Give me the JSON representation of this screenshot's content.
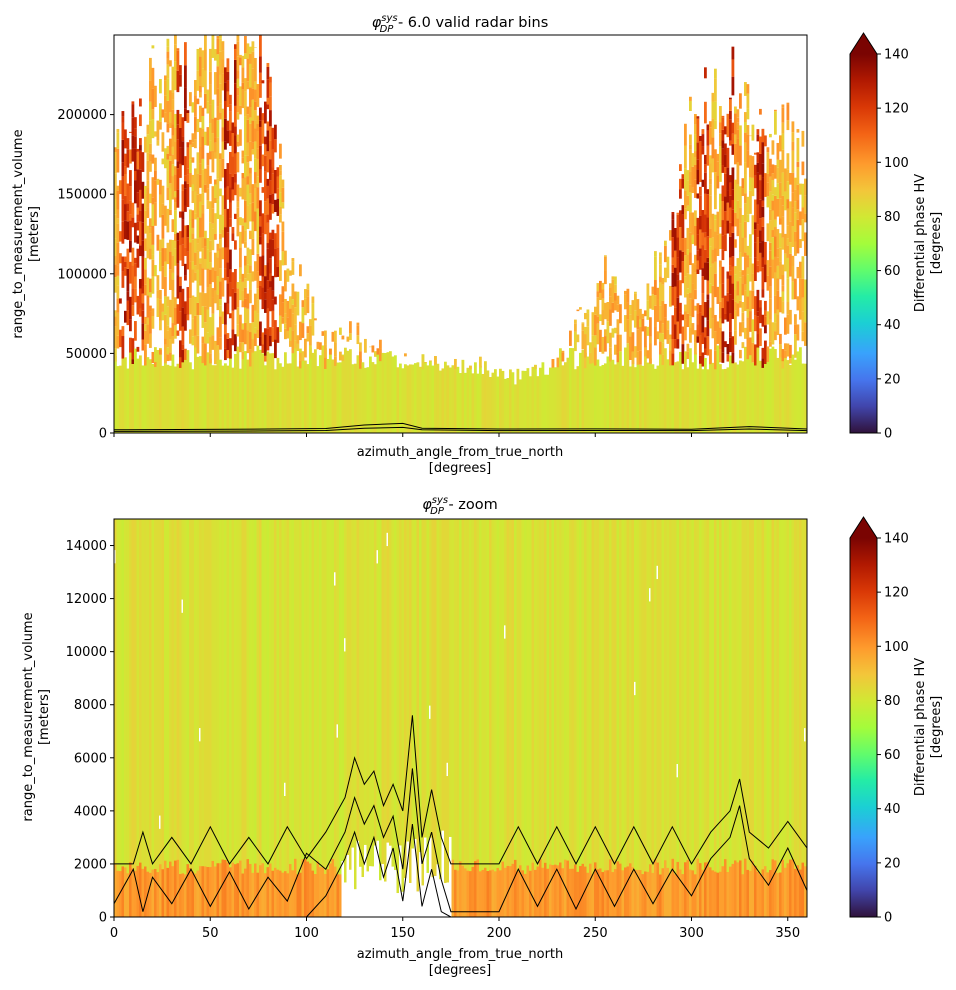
{
  "chart_data": [
    {
      "type": "heatmap",
      "title_symbol": "φ",
      "title_sup": "sys",
      "title_sub": "DP",
      "title_rest": " - 6.0 valid radar bins",
      "xlabel": "azimuth_angle_from_true_north",
      "xunit": "[degrees]",
      "ylabel": "range_to_measurement_volume",
      "yunit": "[meters]",
      "xlim": [
        0,
        360
      ],
      "ylim": [
        0,
        250000
      ],
      "yticks": [
        {
          "value": 0,
          "label": "0"
        },
        {
          "value": 50000,
          "label": "50000"
        },
        {
          "value": 100000,
          "label": "100000"
        },
        {
          "value": 150000,
          "label": "150000"
        },
        {
          "value": 200000,
          "label": "200000"
        }
      ],
      "xticks": [
        {
          "value": 0,
          "label": ""
        },
        {
          "value": 50,
          "label": ""
        },
        {
          "value": 100,
          "label": ""
        },
        {
          "value": 150,
          "label": ""
        },
        {
          "value": 200,
          "label": ""
        },
        {
          "value": 250,
          "label": ""
        },
        {
          "value": 300,
          "label": ""
        },
        {
          "value": 350,
          "label": ""
        }
      ],
      "colorbar": {
        "label": "Differential phase HV",
        "unit": "[degrees]",
        "colormap": "turbo",
        "range": [
          0,
          140
        ],
        "extend": "max",
        "ticks": [
          "0",
          "20",
          "40",
          "60",
          "80",
          "100",
          "120",
          "140"
        ]
      },
      "field_summary": {
        "background_value_deg": 82,
        "echo_top_by_azimuth": [
          [
            0,
            180000
          ],
          [
            20,
            220000
          ],
          [
            40,
            240000
          ],
          [
            60,
            250000
          ],
          [
            80,
            250000
          ],
          [
            90,
            110000
          ],
          [
            110,
            60000
          ],
          [
            130,
            62000
          ],
          [
            150,
            45000
          ],
          [
            170,
            45000
          ],
          [
            190,
            42000
          ],
          [
            210,
            35000
          ],
          [
            225,
            40000
          ],
          [
            240,
            70000
          ],
          [
            255,
            100000
          ],
          [
            270,
            80000
          ],
          [
            285,
            110000
          ],
          [
            300,
            200000
          ],
          [
            320,
            215000
          ],
          [
            345,
            190000
          ],
          [
            360,
            175000
          ]
        ],
        "hot_streaks_azimuth": [
          5,
          12,
          35,
          60,
          78,
          82,
          292,
          305,
          318,
          335
        ]
      },
      "contour_lines_m": [
        {
          "name": "",
          "points": [
            [
              0,
              1000
            ],
            [
              60,
              1200
            ],
            [
              110,
              1600
            ],
            [
              130,
              3000
            ],
            [
              150,
              3500
            ],
            [
              160,
              2000
            ],
            [
              200,
              1500
            ],
            [
              250,
              1600
            ],
            [
              300,
              1500
            ],
            [
              330,
              2500
            ],
            [
              360,
              1500
            ]
          ]
        },
        {
          "name": "",
          "points": [
            [
              0,
              2000
            ],
            [
              60,
              2300
            ],
            [
              110,
              2800
            ],
            [
              130,
              5000
            ],
            [
              150,
              6000
            ],
            [
              160,
              3000
            ],
            [
              200,
              2500
            ],
            [
              250,
              2600
            ],
            [
              300,
              2400
            ],
            [
              330,
              4000
            ],
            [
              360,
              2500
            ]
          ]
        }
      ]
    },
    {
      "type": "heatmap",
      "title_symbol": "φ",
      "title_sup": "sys",
      "title_sub": "DP",
      "title_rest": " - zoom",
      "xlabel": "azimuth_angle_from_true_north",
      "xunit": "[degrees]",
      "ylabel": "range_to_measurement_volume",
      "yunit": "[meters]",
      "xlim": [
        0,
        360
      ],
      "ylim": [
        0,
        15000
      ],
      "yticks": [
        {
          "value": 0,
          "label": "0"
        },
        {
          "value": 2000,
          "label": "2000"
        },
        {
          "value": 4000,
          "label": "4000"
        },
        {
          "value": 6000,
          "label": "6000"
        },
        {
          "value": 8000,
          "label": "8000"
        },
        {
          "value": 10000,
          "label": "10000"
        },
        {
          "value": 12000,
          "label": "12000"
        },
        {
          "value": 14000,
          "label": "14000"
        }
      ],
      "xticks": [
        {
          "value": 0,
          "label": "0"
        },
        {
          "value": 50,
          "label": "50"
        },
        {
          "value": 100,
          "label": "100"
        },
        {
          "value": 150,
          "label": "150"
        },
        {
          "value": 200,
          "label": "200"
        },
        {
          "value": 250,
          "label": "250"
        },
        {
          "value": 300,
          "label": "300"
        },
        {
          "value": 350,
          "label": "350"
        }
      ],
      "colorbar": {
        "label": "Differential phase HV",
        "unit": "[degrees]",
        "colormap": "turbo",
        "range": [
          0,
          140
        ],
        "extend": "max",
        "ticks": [
          "0",
          "20",
          "40",
          "60",
          "80",
          "100",
          "120",
          "140"
        ]
      },
      "field_summary": {
        "background_value_deg": 82,
        "low_band_top_m": 2000,
        "low_band_value_deg": 100,
        "empty_region_azimuth": [
          118,
          175
        ],
        "empty_region_top_m": 3000
      },
      "contour_lines_m": [
        {
          "name": "",
          "points": [
            [
              0,
              2000
            ],
            [
              10,
              2000
            ],
            [
              15,
              3200
            ],
            [
              20,
              2000
            ],
            [
              30,
              3000
            ],
            [
              40,
              2000
            ],
            [
              50,
              3400
            ],
            [
              60,
              2000
            ],
            [
              70,
              3000
            ],
            [
              80,
              2000
            ],
            [
              90,
              3400
            ],
            [
              100,
              2200
            ],
            [
              110,
              3200
            ],
            [
              120,
              4500
            ],
            [
              125,
              6000
            ],
            [
              130,
              5000
            ],
            [
              135,
              5500
            ],
            [
              140,
              4200
            ],
            [
              145,
              5000
            ],
            [
              150,
              4000
            ],
            [
              155,
              7600
            ],
            [
              160,
              3000
            ],
            [
              165,
              4800
            ],
            [
              170,
              3000
            ],
            [
              175,
              2000
            ],
            [
              200,
              2000
            ],
            [
              210,
              3400
            ],
            [
              220,
              2000
            ],
            [
              230,
              3400
            ],
            [
              240,
              2000
            ],
            [
              250,
              3400
            ],
            [
              260,
              2000
            ],
            [
              270,
              3400
            ],
            [
              280,
              2000
            ],
            [
              290,
              3400
            ],
            [
              300,
              2000
            ],
            [
              310,
              3200
            ],
            [
              320,
              4000
            ],
            [
              325,
              5200
            ],
            [
              330,
              3200
            ],
            [
              340,
              2600
            ],
            [
              350,
              3600
            ],
            [
              360,
              2600
            ]
          ]
        },
        {
          "name": "",
          "points": [
            [
              0,
              500
            ],
            [
              10,
              1800
            ],
            [
              15,
              200
            ],
            [
              20,
              1500
            ],
            [
              30,
              500
            ],
            [
              40,
              1800
            ],
            [
              50,
              400
            ],
            [
              60,
              1700
            ],
            [
              70,
              300
            ],
            [
              80,
              1500
            ],
            [
              90,
              600
            ],
            [
              100,
              2400
            ],
            [
              110,
              1800
            ],
            [
              120,
              3200
            ],
            [
              125,
              4500
            ],
            [
              130,
              3500
            ],
            [
              135,
              4200
            ],
            [
              140,
              3000
            ],
            [
              145,
              3800
            ],
            [
              150,
              1800
            ],
            [
              155,
              5600
            ],
            [
              160,
              2000
            ],
            [
              165,
              3200
            ],
            [
              170,
              1400
            ],
            [
              175,
              200
            ],
            [
              200,
              200
            ],
            [
              210,
              1800
            ],
            [
              220,
              400
            ],
            [
              230,
              1800
            ],
            [
              240,
              300
            ],
            [
              250,
              1800
            ],
            [
              260,
              400
            ],
            [
              270,
              1800
            ],
            [
              280,
              500
            ],
            [
              290,
              1800
            ],
            [
              300,
              800
            ],
            [
              310,
              2200
            ],
            [
              320,
              3000
            ],
            [
              325,
              4200
            ],
            [
              330,
              2200
            ],
            [
              340,
              1200
            ],
            [
              350,
              2600
            ],
            [
              360,
              1000
            ]
          ]
        },
        {
          "name": "",
          "points": [
            [
              0,
              0
            ],
            [
              100,
              0
            ],
            [
              110,
              800
            ],
            [
              120,
              2200
            ],
            [
              125,
              3200
            ],
            [
              130,
              2000
            ],
            [
              135,
              3000
            ],
            [
              140,
              1500
            ],
            [
              145,
              2600
            ],
            [
              150,
              600
            ],
            [
              155,
              3500
            ],
            [
              160,
              400
            ],
            [
              165,
              1800
            ],
            [
              170,
              200
            ],
            [
              175,
              0
            ],
            [
              360,
              0
            ]
          ]
        }
      ]
    }
  ]
}
